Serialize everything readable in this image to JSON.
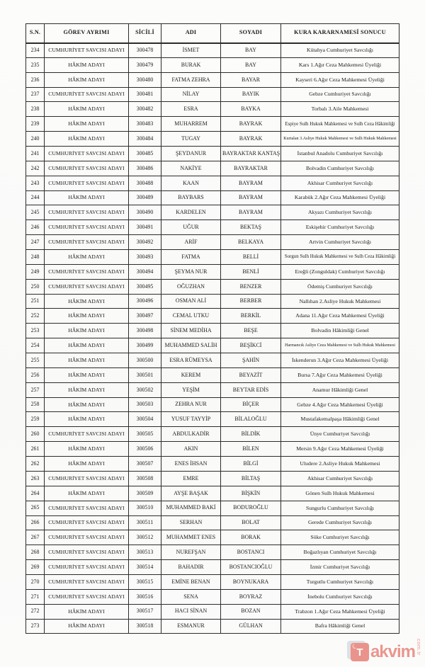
{
  "header": {
    "columns": [
      "S.N.",
      "GÖREV AYRIMI",
      "SİCİLİ",
      "ADI",
      "SOYADI",
      "KURA KARARNAMESİ SONUCU"
    ]
  },
  "rows": [
    [
      "234",
      "CUMHURİYET SAVCISI ADAYI",
      "300478",
      "İSMET",
      "BAY",
      "Kütahya Cumhuriyet Savcılığı"
    ],
    [
      "235",
      "HÂKİM ADAYI",
      "300479",
      "BURAK",
      "BAY",
      "Kars 1.Ağır Ceza Mahkemesi Üyeliği"
    ],
    [
      "236",
      "HÂKİM ADAYI",
      "300480",
      "FATMA ZEHRA",
      "BAYAR",
      "Kayseri 6.Ağır Ceza Mahkemesi Üyeliği"
    ],
    [
      "237",
      "CUMHURİYET SAVCISI ADAYI",
      "300481",
      "NİLAY",
      "BAYIK",
      "Gebze Cumhuriyet Savcılığı"
    ],
    [
      "238",
      "HÂKİM ADAYI",
      "300482",
      "ESRA",
      "BAYKA",
      "Torbalı 3.Aile Mahkemesi"
    ],
    [
      "239",
      "HÂKİM ADAYI",
      "300483",
      "MUHARREM",
      "BAYRAK",
      "Espiye Sulh Hukuk Mahkemesi ve Sulh Ceza Hâkimliği"
    ],
    [
      "240",
      "HÂKİM ADAYI",
      "300484",
      "TUGAY",
      "BAYRAK",
      "Kurtalan 3.Asliye Hukuk Mahkemesi ve Sulh Hukuk Mahkemesi"
    ],
    [
      "241",
      "CUMHURİYET SAVCISI ADAYI",
      "300485",
      "ŞEYDANUR",
      "BAYRAKTAR KANTAŞ",
      "İstanbul Anadolu Cumhuriyet Savcılığı"
    ],
    [
      "242",
      "CUMHURİYET SAVCISI ADAYI",
      "300486",
      "NAKİYE",
      "BAYRAKTAR",
      "Bolvadin Cumhuriyet Savcılığı"
    ],
    [
      "243",
      "CUMHURİYET SAVCISI ADAYI",
      "300488",
      "KAAN",
      "BAYRAM",
      "Akhisar Cumhuriyet Savcılığı"
    ],
    [
      "244",
      "HÂKİM ADAYI",
      "300489",
      "BAYBARS",
      "BAYRAM",
      "Karabük 2.Ağır Ceza Mahkemesi Üyeliği"
    ],
    [
      "245",
      "CUMHURİYET SAVCISI ADAYI",
      "300490",
      "KARDELEN",
      "BAYRAM",
      "Akyazı Cumhuriyet Savcılığı"
    ],
    [
      "246",
      "CUMHURİYET SAVCISI ADAYI",
      "300491",
      "UĞUR",
      "BEKTAŞ",
      "Eskişehir Cumhuriyet Savcılığı"
    ],
    [
      "247",
      "CUMHURİYET SAVCISI ADAYI",
      "300492",
      "ARİF",
      "BELKAYA",
      "Artvin Cumhuriyet Savcılığı"
    ],
    [
      "248",
      "HÂKİM ADAYI",
      "300493",
      "FATMA",
      "BELLİ",
      "Sorgun Sulh Hukuk Mahkemesi ve Sulh Ceza Hâkimliği"
    ],
    [
      "249",
      "CUMHURİYET SAVCISI ADAYI",
      "300494",
      "ŞEYMA NUR",
      "BENLİ",
      "Ereğli (Zonguldak) Cumhuriyet Savcılığı"
    ],
    [
      "250",
      "CUMHURİYET SAVCISI ADAYI",
      "300495",
      "OĞUZHAN",
      "BENZER",
      "Ödemiş Cumhuriyet Savcılığı"
    ],
    [
      "251",
      "HÂKİM ADAYI",
      "300496",
      "OSMAN ALİ",
      "BERBER",
      "Nallıhan 2.Asliye Hukuk Mahkemesi"
    ],
    [
      "252",
      "HÂKİM ADAYI",
      "300497",
      "CEMAL UTKU",
      "BERKİL",
      "Adana 11.Ağır Ceza Mahkemesi Üyeliği"
    ],
    [
      "253",
      "HÂKİM ADAYI",
      "300498",
      "SİNEM MEDİHA",
      "BEŞE",
      "Bolvadin Hâkimliği Genel"
    ],
    [
      "254",
      "HÂKİM ADAYI",
      "300499",
      "MUHAMMED SALİH",
      "BEŞİKCİ",
      "Harmancık Asliye Ceza Mahkemesi ve Sulh Hukuk Mahkemesi"
    ],
    [
      "255",
      "HÂKİM ADAYI",
      "300500",
      "ESRA RÜMEYSA",
      "ŞAHİN",
      "İskenderun 3.Ağır Ceza Mahkemesi Üyeliği"
    ],
    [
      "256",
      "HÂKİM ADAYI",
      "300501",
      "KEREM",
      "BEYAZİT",
      "Bursa 7.Ağır Ceza Mahkemesi Üyeliği"
    ],
    [
      "257",
      "HÂKİM ADAYI",
      "300502",
      "YEŞİM",
      "BEYTAR EDİS",
      "Anamur Hâkimliği Genel"
    ],
    [
      "258",
      "HÂKİM ADAYI",
      "300503",
      "ZEHRA NUR",
      "BİÇER",
      "Gebze 4.Ağır Ceza Mahkemesi Üyeliği"
    ],
    [
      "259",
      "HÂKİM ADAYI",
      "300504",
      "YUSUF TAYYİP",
      "BİLALOĞLU",
      "Mustafakemalpaşa Hâkimliği Genel"
    ],
    [
      "260",
      "CUMHURİYET SAVCISI ADAYI",
      "300505",
      "ABDULKADİR",
      "BİLDİK",
      "Ünye Cumhuriyet Savcılığı"
    ],
    [
      "261",
      "HÂKİM ADAYI",
      "300506",
      "AKIN",
      "BİLEN",
      "Mersin 9.Ağır Ceza Mahkemesi Üyeliği"
    ],
    [
      "262",
      "HÂKİM ADAYI",
      "300507",
      "ENES İHSAN",
      "BİLGİ",
      "Uludere 2.Asliye Hukuk Mahkemesi"
    ],
    [
      "263",
      "CUMHURİYET SAVCISI ADAYI",
      "300508",
      "EMRE",
      "BİLTAŞ",
      "Akhisar Cumhuriyet Savcılığı"
    ],
    [
      "264",
      "HÂKİM ADAYI",
      "300509",
      "AYŞE BAŞAK",
      "BİŞKİN",
      "Gönen Sulh Hukuk Mahkemesi"
    ],
    [
      "265",
      "CUMHURİYET SAVCISI ADAYI",
      "300510",
      "MUHAMMED BAKİ",
      "BODUROĞLU",
      "Sungurlu Cumhuriyet Savcılığı"
    ],
    [
      "266",
      "CUMHURİYET SAVCISI ADAYI",
      "300511",
      "SERHAN",
      "BOLAT",
      "Gerede Cumhuriyet Savcılığı"
    ],
    [
      "267",
      "CUMHURİYET SAVCISI ADAYI",
      "300512",
      "MUHAMMET ENES",
      "BORAK",
      "Söke Cumhuriyet Savcılığı"
    ],
    [
      "268",
      "CUMHURİYET SAVCISI ADAYI",
      "300513",
      "NUREFŞAN",
      "BOSTANCI",
      "Boğazlıyan Cumhuriyet Savcılığı"
    ],
    [
      "269",
      "CUMHURİYET SAVCISI ADAYI",
      "300514",
      "BAHADIR",
      "BOSTANCIOĞLU",
      "İzmir Cumhuriyet Savcılığı"
    ],
    [
      "270",
      "CUMHURİYET SAVCISI ADAYI",
      "300515",
      "EMİNE BENAN",
      "BOYNUKARA",
      "Turgutlu Cumhuriyet Savcılığı"
    ],
    [
      "271",
      "CUMHURİYET SAVCISI ADAYI",
      "300516",
      "SENA",
      "BOYRAZ",
      "İnebolu Cumhuriyet Savcılığı"
    ],
    [
      "272",
      "HÂKİM ADAYI",
      "300517",
      "HACI SİNAN",
      "BOZAN",
      "Trabzon 1.Ağır Ceza Mahkemesi Üyeliği"
    ],
    [
      "273",
      "HÂKİM ADAYI",
      "300518",
      "ESMANUR",
      "GÜLHAN",
      "Bafra Hâkimliği Genel"
    ]
  ],
  "watermark": {
    "brand_initial": "T",
    "brand_rest": "akvim",
    "suffix": "com.tr",
    "accent_color": "#dd4437"
  }
}
